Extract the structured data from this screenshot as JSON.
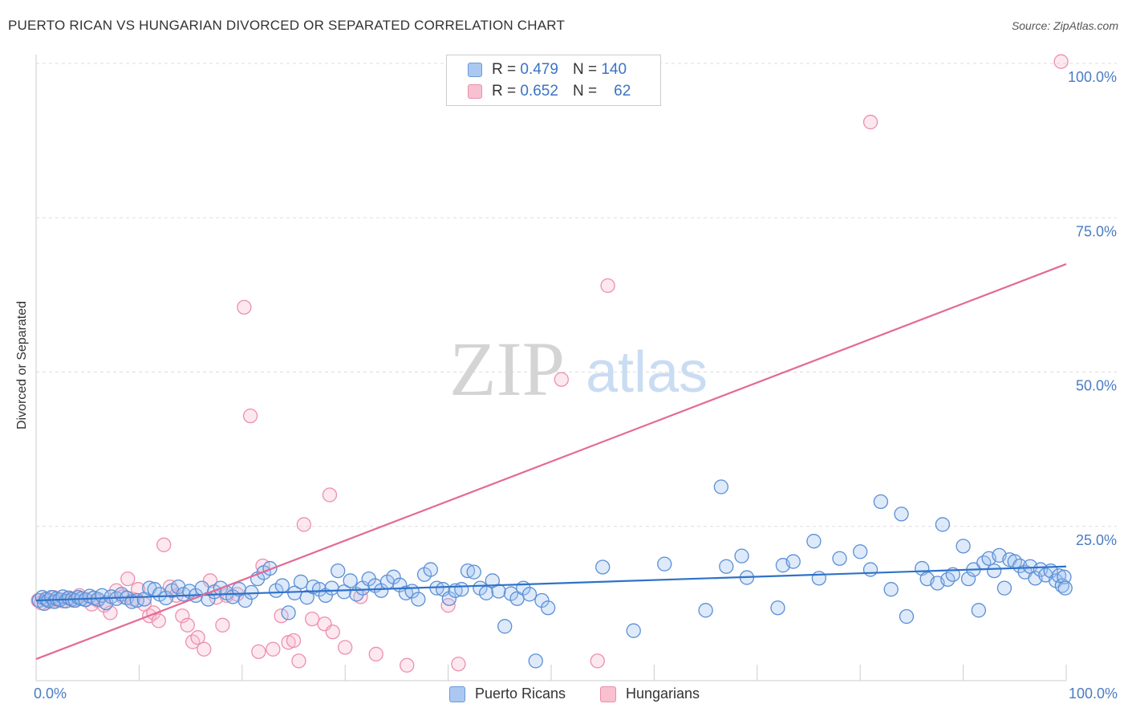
{
  "title": "PUERTO RICAN VS HUNGARIAN DIVORCED OR SEPARATED CORRELATION CHART",
  "source": "Source: ZipAtlas.com",
  "watermark": {
    "zip": "ZIP",
    "atlas": "atlas"
  },
  "legend": {
    "rows": [
      {
        "r_label": "R =",
        "r_value": "0.479",
        "n_label": "N =",
        "n_value": "140",
        "color": "#aac8f0",
        "border": "#6a9ad8"
      },
      {
        "r_label": "R =",
        "r_value": "0.652",
        "n_label": "N =",
        "n_value": "62",
        "color": "#f8c0d0",
        "border": "#e890aa"
      }
    ]
  },
  "bottom_legend": {
    "series1": "Puerto Ricans",
    "series2": "Hungarians"
  },
  "colors": {
    "blue": "#5b8fd6",
    "blue_fill": "rgba(160,195,240,0.35)",
    "blue_line": "#2f72c8",
    "pink": "#ec8fae",
    "pink_fill": "rgba(248,190,210,0.35)",
    "pink_line": "#e46a94",
    "tick_text": "#4a7cc4",
    "grid": "#dddddd"
  },
  "chart_data": {
    "type": "scatter",
    "title": "PUERTO RICAN VS HUNGARIAN DIVORCED OR SEPARATED CORRELATION CHART",
    "xlabel": "",
    "ylabel": "Divorced or Separated",
    "xlim": [
      0,
      100
    ],
    "ylim": [
      0,
      100
    ],
    "x_tick_labels": [
      "0.0%",
      "100.0%"
    ],
    "y_tick_labels": [
      "25.0%",
      "50.0%",
      "75.0%",
      "100.0%"
    ],
    "y_ticks": [
      25,
      50,
      75,
      100
    ],
    "x_minor_ticks": [
      0,
      10,
      20,
      30,
      40,
      50,
      60,
      70,
      80,
      90,
      100
    ],
    "series": [
      {
        "name": "Puerto Ricans",
        "r": 0.479,
        "n": 140,
        "trend": {
          "x": [
            0,
            100
          ],
          "y": [
            13.0,
            18.5
          ]
        },
        "points": [
          [
            0.3,
            13.0
          ],
          [
            0.6,
            13.5
          ],
          [
            0.8,
            12.5
          ],
          [
            1.0,
            13.2
          ],
          [
            1.2,
            13.0
          ],
          [
            1.5,
            13.5
          ],
          [
            1.8,
            12.8
          ],
          [
            2.0,
            13.3
          ],
          [
            2.3,
            13.1
          ],
          [
            2.6,
            13.6
          ],
          [
            2.9,
            12.9
          ],
          [
            3.2,
            13.4
          ],
          [
            3.5,
            13.2
          ],
          [
            3.8,
            13.0
          ],
          [
            4.1,
            13.5
          ],
          [
            4.4,
            13.3
          ],
          [
            4.8,
            13.1
          ],
          [
            5.2,
            13.7
          ],
          [
            5.6,
            13.4
          ],
          [
            6.0,
            13.2
          ],
          [
            6.4,
            13.8
          ],
          [
            6.8,
            12.6
          ],
          [
            7.3,
            13.6
          ],
          [
            7.8,
            13.3
          ],
          [
            8.3,
            14.0
          ],
          [
            8.8,
            13.4
          ],
          [
            9.3,
            12.8
          ],
          [
            9.8,
            13.0
          ],
          [
            10.5,
            13.2
          ],
          [
            11.0,
            15.0
          ],
          [
            11.5,
            14.8
          ],
          [
            12.0,
            14.0
          ],
          [
            12.6,
            13.4
          ],
          [
            13.2,
            14.6
          ],
          [
            13.8,
            15.2
          ],
          [
            14.3,
            14.0
          ],
          [
            14.9,
            14.5
          ],
          [
            15.5,
            13.8
          ],
          [
            16.1,
            15.0
          ],
          [
            16.7,
            13.2
          ],
          [
            17.3,
            14.4
          ],
          [
            17.9,
            15.0
          ],
          [
            18.5,
            14.2
          ],
          [
            19.1,
            13.6
          ],
          [
            19.7,
            14.8
          ],
          [
            20.3,
            13.0
          ],
          [
            20.9,
            14.3
          ],
          [
            21.5,
            16.5
          ],
          [
            22.1,
            17.5
          ],
          [
            22.7,
            18.2
          ],
          [
            23.3,
            14.6
          ],
          [
            23.9,
            15.4
          ],
          [
            24.5,
            11.0
          ],
          [
            25.1,
            14.2
          ],
          [
            25.7,
            16.0
          ],
          [
            26.3,
            13.5
          ],
          [
            26.9,
            15.2
          ],
          [
            27.5,
            14.8
          ],
          [
            28.1,
            13.8
          ],
          [
            28.7,
            15.0
          ],
          [
            29.3,
            17.8
          ],
          [
            29.9,
            14.4
          ],
          [
            30.5,
            16.2
          ],
          [
            31.1,
            14.0
          ],
          [
            31.7,
            15.0
          ],
          [
            32.3,
            16.5
          ],
          [
            32.9,
            15.4
          ],
          [
            33.5,
            14.6
          ],
          [
            34.1,
            16.0
          ],
          [
            34.7,
            16.8
          ],
          [
            35.3,
            15.5
          ],
          [
            35.9,
            14.2
          ],
          [
            36.5,
            14.5
          ],
          [
            37.1,
            13.2
          ],
          [
            37.7,
            17.2
          ],
          [
            38.3,
            18.0
          ],
          [
            38.9,
            15.0
          ],
          [
            39.5,
            14.8
          ],
          [
            40.1,
            13.3
          ],
          [
            40.7,
            14.6
          ],
          [
            41.3,
            14.8
          ],
          [
            41.9,
            17.8
          ],
          [
            42.5,
            17.6
          ],
          [
            43.1,
            15.0
          ],
          [
            43.7,
            14.2
          ],
          [
            44.3,
            16.2
          ],
          [
            44.9,
            14.5
          ],
          [
            45.5,
            8.8
          ],
          [
            46.1,
            14.1
          ],
          [
            46.7,
            13.3
          ],
          [
            47.3,
            15.0
          ],
          [
            47.9,
            14.0
          ],
          [
            48.5,
            3.2
          ],
          [
            49.1,
            13.0
          ],
          [
            49.7,
            11.8
          ],
          [
            55.0,
            18.4
          ],
          [
            58.0,
            8.1
          ],
          [
            61.0,
            18.9
          ],
          [
            65.0,
            11.4
          ],
          [
            66.5,
            31.4
          ],
          [
            67.0,
            18.5
          ],
          [
            68.5,
            20.2
          ],
          [
            69.0,
            16.7
          ],
          [
            72.0,
            11.8
          ],
          [
            72.5,
            18.7
          ],
          [
            73.5,
            19.3
          ],
          [
            75.5,
            22.6
          ],
          [
            76.0,
            16.6
          ],
          [
            78.0,
            19.8
          ],
          [
            80.0,
            20.9
          ],
          [
            81.0,
            18.0
          ],
          [
            82.0,
            29.0
          ],
          [
            83.0,
            14.8
          ],
          [
            84.0,
            27.0
          ],
          [
            84.5,
            10.4
          ],
          [
            86.0,
            18.2
          ],
          [
            86.5,
            16.5
          ],
          [
            87.5,
            15.8
          ],
          [
            88.0,
            25.3
          ],
          [
            88.5,
            16.4
          ],
          [
            89.0,
            17.2
          ],
          [
            90.0,
            21.8
          ],
          [
            90.5,
            16.5
          ],
          [
            91.0,
            18.0
          ],
          [
            91.5,
            11.4
          ],
          [
            92.0,
            19.1
          ],
          [
            92.5,
            19.8
          ],
          [
            93.0,
            17.8
          ],
          [
            93.5,
            20.3
          ],
          [
            94.0,
            15.0
          ],
          [
            94.5,
            19.6
          ],
          [
            95.0,
            19.3
          ],
          [
            95.5,
            18.6
          ],
          [
            96.0,
            17.6
          ],
          [
            96.5,
            18.5
          ],
          [
            97.0,
            16.6
          ],
          [
            97.5,
            18.0
          ],
          [
            98.0,
            17.1
          ],
          [
            98.5,
            17.8
          ],
          [
            99.0,
            16.2
          ],
          [
            99.3,
            17.0
          ],
          [
            99.6,
            15.4
          ],
          [
            99.8,
            16.8
          ],
          [
            99.9,
            15.0
          ]
        ]
      },
      {
        "name": "Hungarians",
        "r": 0.652,
        "n": 62,
        "trend": {
          "x": [
            0,
            100
          ],
          "y": [
            3.5,
            67.5
          ]
        },
        "points": [
          [
            0.2,
            13.0
          ],
          [
            0.5,
            12.6
          ],
          [
            0.9,
            13.2
          ],
          [
            1.3,
            12.8
          ],
          [
            1.7,
            13.5
          ],
          [
            2.1,
            13.0
          ],
          [
            2.6,
            12.9
          ],
          [
            3.1,
            13.4
          ],
          [
            3.6,
            13.0
          ],
          [
            4.2,
            13.8
          ],
          [
            4.8,
            13.2
          ],
          [
            5.4,
            12.4
          ],
          [
            6.0,
            13.0
          ],
          [
            6.6,
            12.2
          ],
          [
            7.2,
            11.0
          ],
          [
            7.8,
            14.6
          ],
          [
            8.4,
            13.6
          ],
          [
            8.9,
            16.5
          ],
          [
            9.4,
            13.2
          ],
          [
            9.9,
            14.8
          ],
          [
            10.5,
            12.4
          ],
          [
            11.0,
            10.5
          ],
          [
            11.4,
            11.0
          ],
          [
            11.9,
            9.7
          ],
          [
            12.4,
            22.0
          ],
          [
            13.0,
            15.2
          ],
          [
            13.6,
            13.8
          ],
          [
            14.2,
            10.5
          ],
          [
            14.7,
            9.0
          ],
          [
            15.2,
            6.3
          ],
          [
            15.7,
            7.0
          ],
          [
            16.3,
            5.1
          ],
          [
            16.9,
            16.2
          ],
          [
            17.5,
            13.5
          ],
          [
            18.1,
            9.0
          ],
          [
            18.5,
            13.8
          ],
          [
            19.5,
            14.0
          ],
          [
            20.2,
            60.5
          ],
          [
            20.8,
            42.9
          ],
          [
            21.6,
            4.7
          ],
          [
            22.0,
            18.6
          ],
          [
            23.0,
            5.1
          ],
          [
            23.8,
            10.5
          ],
          [
            24.5,
            6.2
          ],
          [
            25.0,
            6.5
          ],
          [
            25.5,
            3.2
          ],
          [
            26.0,
            25.3
          ],
          [
            26.8,
            10.0
          ],
          [
            28.0,
            9.2
          ],
          [
            28.5,
            30.1
          ],
          [
            28.8,
            7.9
          ],
          [
            30.0,
            5.4
          ],
          [
            31.5,
            13.6
          ],
          [
            33.0,
            4.3
          ],
          [
            36.0,
            2.5
          ],
          [
            40.0,
            12.2
          ],
          [
            41.0,
            2.7
          ],
          [
            51.0,
            48.8
          ],
          [
            54.5,
            3.2
          ],
          [
            55.5,
            64.0
          ],
          [
            81.0,
            90.5
          ],
          [
            99.5,
            100.3
          ]
        ]
      }
    ]
  }
}
